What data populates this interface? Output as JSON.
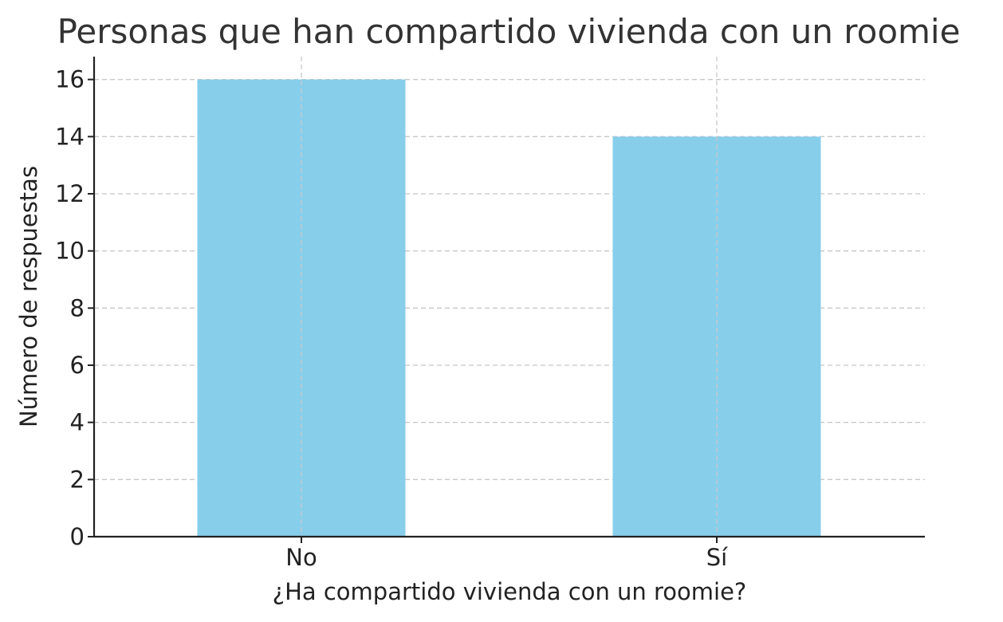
{
  "chart_data": {
    "type": "bar",
    "title": "Personas que han compartido vivienda con un roomie",
    "xlabel": "¿Ha compartido vivienda con un roomie?",
    "ylabel": "Número de respuestas",
    "categories": [
      "No",
      "Sí"
    ],
    "values": [
      16,
      14
    ],
    "ylim": [
      0,
      16.8
    ],
    "yticks": [
      0,
      2,
      4,
      6,
      8,
      10,
      12,
      14,
      16
    ],
    "ytick_labels": [
      "0",
      "2",
      "4",
      "6",
      "8",
      "10",
      "12",
      "14",
      "16"
    ],
    "grid": true,
    "bar_color": "#87CEEB"
  }
}
